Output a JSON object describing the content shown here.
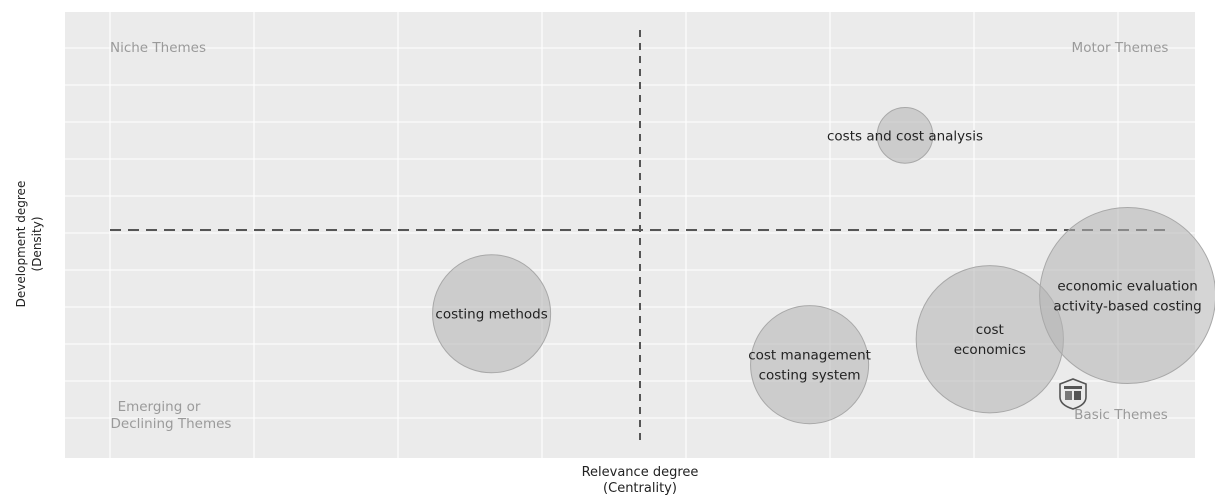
{
  "chart_data": {
    "type": "bubble",
    "title": "",
    "xlabel_line1": "Relevance degree",
    "xlabel_line2": "(Centrality)",
    "ylabel_line1": "Development degree",
    "ylabel_line2": "(Density)",
    "grid": true,
    "xlim": [
      0,
      1
    ],
    "ylim": [
      0,
      1
    ],
    "x_threshold": 0.5,
    "y_threshold": 0.5,
    "quadrant_labels": {
      "top_left": "Niche Themes",
      "top_right": "Motor Themes",
      "bottom_left_line1": "Emerging or",
      "bottom_left_line2": "Declining Themes",
      "bottom_right": "Basic Themes"
    },
    "points": [
      {
        "labels": [
          "costs and cost analysis"
        ],
        "x": 0.75,
        "y": 0.76,
        "size": 0.1
      },
      {
        "labels": [
          "costing methods"
        ],
        "x": 0.36,
        "y": 0.27,
        "size": 0.45
      },
      {
        "labels": [
          "cost management",
          "costing system"
        ],
        "x": 0.66,
        "y": 0.13,
        "size": 0.45
      },
      {
        "labels": [
          "cost",
          "economics"
        ],
        "x": 0.83,
        "y": 0.2,
        "size": 0.7
      },
      {
        "labels": [
          "economic evaluation",
          "activity-based costing"
        ],
        "x": 0.96,
        "y": 0.32,
        "size": 1.0
      }
    ]
  },
  "colors": {
    "panel": "#ebebeb",
    "grid": "#ffffff",
    "bubble_fill": "#b3b3b3",
    "bubble_stroke": "#a8a8a8",
    "quadrant_label": "#9a9a9a",
    "divider": "#555555",
    "text": "#222222"
  },
  "icon": "shield-icon"
}
